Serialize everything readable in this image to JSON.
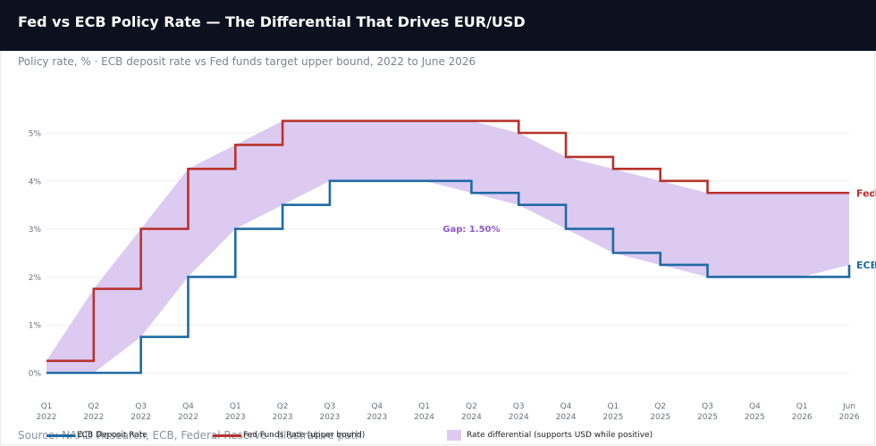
{
  "header": {
    "title": "Fed vs ECB Policy Rate — The Differential That Drives EUR/USD",
    "subtitle": "Policy rate, % · ECB deposit rate vs Fed funds target upper bound, 2022 to June 2026"
  },
  "source": "Source: NAAD Research, ECB, Federal Reserve · Illustrative path",
  "legend": {
    "ecb": "ECB Deposit Rate",
    "fed": "Fed Funds Rate (upper bound)",
    "gap": "Rate differential (supports USD while positive)"
  },
  "colors": {
    "fed": "#b8322e",
    "ecb": "#1f6aa5",
    "gap_fill": "#dccaf0",
    "annotation": "#8e5cc8",
    "header_bg": "#0b111e"
  },
  "chart_data": {
    "type": "line",
    "step": "after",
    "x_ticks": [
      {
        "top": "Q1",
        "bottom": "2022"
      },
      {
        "top": "Q2",
        "bottom": "2022"
      },
      {
        "top": "Q3",
        "bottom": "2022"
      },
      {
        "top": "Q4",
        "bottom": "2022"
      },
      {
        "top": "Q1",
        "bottom": "2023"
      },
      {
        "top": "Q2",
        "bottom": "2023"
      },
      {
        "top": "Q3",
        "bottom": "2023"
      },
      {
        "top": "Q4",
        "bottom": "2023"
      },
      {
        "top": "Q1",
        "bottom": "2024"
      },
      {
        "top": "Q2",
        "bottom": "2024"
      },
      {
        "top": "Q3",
        "bottom": "2024"
      },
      {
        "top": "Q4",
        "bottom": "2024"
      },
      {
        "top": "Q1",
        "bottom": "2025"
      },
      {
        "top": "Q2",
        "bottom": "2025"
      },
      {
        "top": "Q3",
        "bottom": "2025"
      },
      {
        "top": "Q4",
        "bottom": "2025"
      },
      {
        "top": "Q1",
        "bottom": "2026"
      },
      {
        "top": "Jun",
        "bottom": "2026"
      }
    ],
    "y_ticks": [
      "0%",
      "1%",
      "2%",
      "3%",
      "4%",
      "5%"
    ],
    "ylim": [
      0,
      5.25
    ],
    "grid": true,
    "series": [
      {
        "name": "Fed Funds Rate (upper bound)",
        "end_label": "Fed",
        "values": [
          0.25,
          1.75,
          3.0,
          4.25,
          4.75,
          5.25,
          5.25,
          5.25,
          5.25,
          5.25,
          5.0,
          4.5,
          4.25,
          4.0,
          3.75,
          3.75,
          3.75,
          3.75
        ]
      },
      {
        "name": "ECB Deposit Rate",
        "end_label": "ECB",
        "values": [
          0.0,
          0.0,
          0.75,
          2.0,
          3.0,
          3.5,
          4.0,
          4.0,
          4.0,
          3.75,
          3.5,
          3.0,
          2.5,
          2.25,
          2.0,
          2.0,
          2.0,
          2.25
        ]
      }
    ],
    "annotation": "Gap: 1.50%"
  }
}
